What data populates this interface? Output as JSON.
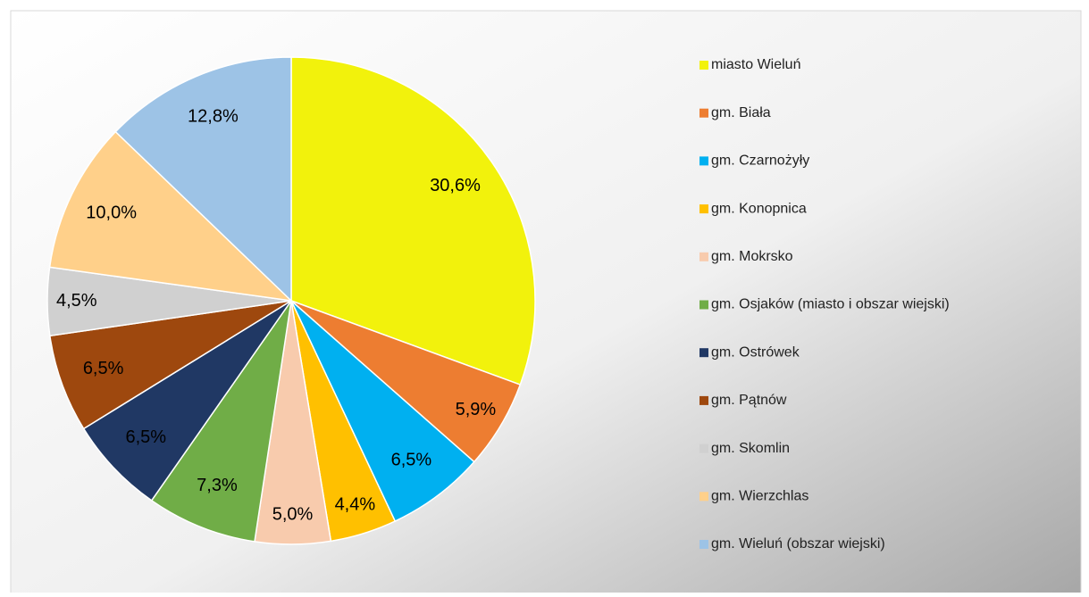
{
  "chart_data": {
    "type": "pie",
    "categories": [
      "miasto Wieluń",
      "gm. Biała",
      "gm. Czarnożyły",
      "gm. Konopnica",
      "gm. Mokrsko",
      "gm. Osjaków (miasto i obszar wiejski)",
      "gm. Ostrówek",
      "gm. Pątnów",
      "gm. Skomlin",
      "gm. Wierzchlas",
      "gm. Wieluń (obszar wiejski)"
    ],
    "values": [
      30.6,
      5.9,
      6.5,
      4.4,
      5.0,
      7.3,
      6.5,
      6.5,
      4.5,
      10.0,
      12.8
    ],
    "value_labels": [
      "30,6%",
      "5,9%",
      "6,5%",
      "4,4%",
      "5,0%",
      "7,3%",
      "6,5%",
      "6,5%",
      "4,5%",
      "10,0%",
      "12,8%"
    ],
    "colors": [
      "#f2f20c",
      "#ed7d31",
      "#00b0f0",
      "#ffc000",
      "#f8cbad",
      "#70ad47",
      "#203864",
      "#9e480e",
      "#d0d0d0",
      "#ffd08a",
      "#9dc3e6"
    ],
    "legend": "right"
  }
}
